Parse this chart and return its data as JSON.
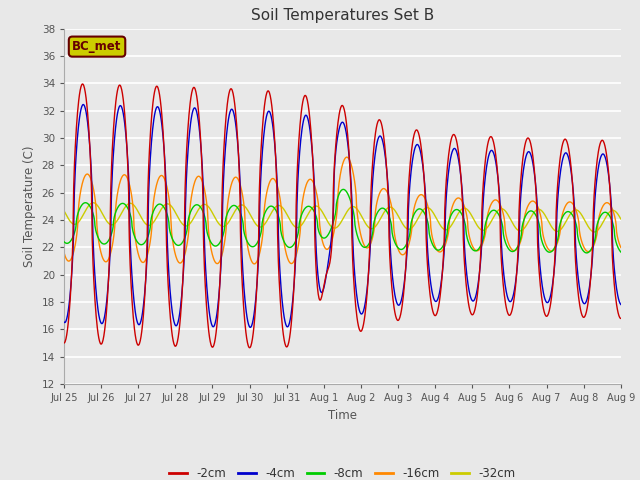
{
  "title": "Soil Temperatures Set B",
  "xlabel": "Time",
  "ylabel": "Soil Temperature (C)",
  "ylim": [
    12,
    38
  ],
  "yticks": [
    12,
    14,
    16,
    18,
    20,
    22,
    24,
    26,
    28,
    30,
    32,
    34,
    36,
    38
  ],
  "colors": {
    "-2cm": "#cc0000",
    "-4cm": "#0000cc",
    "-8cm": "#00cc00",
    "-16cm": "#ff8800",
    "-32cm": "#cccc00"
  },
  "background_color": "#e8e8e8",
  "n_points": 1440,
  "x_start": 0,
  "x_end": 15,
  "xtick_positions": [
    0,
    1,
    2,
    3,
    4,
    5,
    6,
    7,
    8,
    9,
    10,
    11,
    12,
    13,
    14,
    15
  ],
  "xtick_labels": [
    "Jul 25",
    "Jul 26",
    "Jul 27",
    "Jul 28",
    "Jul 29",
    "Jul 30",
    "Jul 31",
    "Aug 1",
    "Aug 2",
    "Aug 3",
    "Aug 4",
    "Aug 5",
    "Aug 6",
    "Aug 7",
    "Aug 8",
    "Aug 9"
  ]
}
